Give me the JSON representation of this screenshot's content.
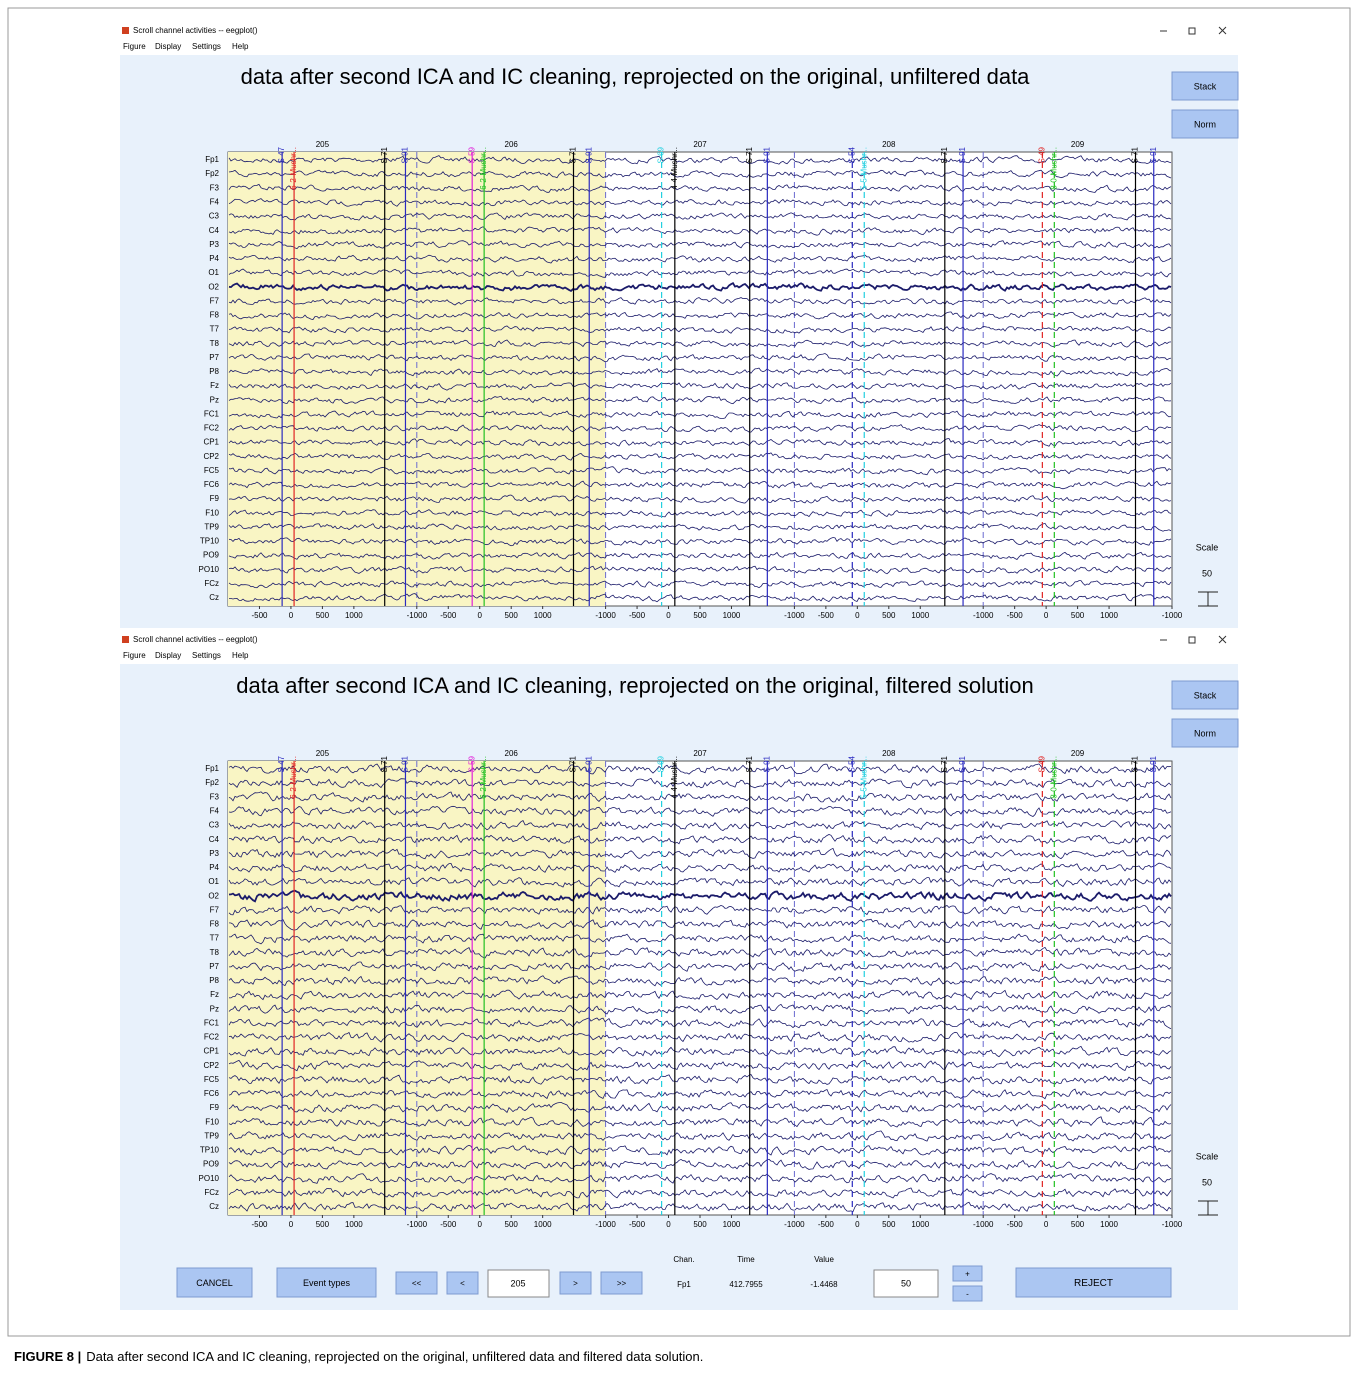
{
  "caption": {
    "label": "FIGURE 8 |",
    "text": "Data after second ICA and IC cleaning, reprojected on the original, unfiltered data and filtered data solution."
  },
  "eegplot": {
    "channels": [
      "Fp1",
      "Fp2",
      "F3",
      "F4",
      "C3",
      "C4",
      "P3",
      "P4",
      "O1",
      "O2",
      "F7",
      "F8",
      "T7",
      "T8",
      "P7",
      "P8",
      "Fz",
      "Pz",
      "FC1",
      "FC2",
      "CP1",
      "CP2",
      "FC5",
      "FC6",
      "F9",
      "F10",
      "TP9",
      "TP10",
      "PO9",
      "PO10",
      "FCz",
      "Cz"
    ],
    "xlim": [
      -1000,
      14000
    ],
    "xticks": [
      {
        "value": -500,
        "label": "-500"
      },
      0,
      500,
      1000,
      {
        "value": 2000,
        "label": "-1000"
      },
      {
        "value": 2500,
        "label": "-500"
      },
      {
        "value": 3000,
        "label": "0"
      },
      {
        "value": 3500,
        "label": "500"
      },
      {
        "value": 4000,
        "label": "1000"
      },
      {
        "value": 5000,
        "label": "-1000"
      },
      {
        "value": 5500,
        "label": "-500"
      },
      {
        "value": 6000,
        "label": "0"
      },
      {
        "value": 6500,
        "label": "500"
      },
      {
        "value": 7000,
        "label": "1000"
      },
      {
        "value": 8000,
        "label": "-1000"
      },
      {
        "value": 8500,
        "label": "-500"
      },
      {
        "value": 9000,
        "label": "0"
      },
      {
        "value": 9500,
        "label": "500"
      },
      {
        "value": 10000,
        "label": "1000"
      },
      {
        "value": 11000,
        "label": "-1000"
      },
      {
        "value": 11500,
        "label": "-500"
      },
      {
        "value": 12000,
        "label": "0"
      },
      {
        "value": 12500,
        "label": "500"
      },
      {
        "value": 13000,
        "label": "1000"
      },
      {
        "value": 14000,
        "label": "-1000"
      }
    ],
    "epochs": [
      {
        "value": 500,
        "label": "205"
      },
      {
        "value": 3500,
        "label": "206"
      },
      {
        "value": 6500,
        "label": "207"
      },
      {
        "value": 9500,
        "label": "208"
      },
      {
        "value": 12500,
        "label": "209"
      }
    ],
    "epoch_boundaries": [
      2000,
      5000,
      8000,
      11000
    ],
    "selection": [
      -1000,
      5000
    ],
    "selection_color": "#f9f5c4",
    "trace_color": "#1b1b6a",
    "events": [
      {
        "x": -140,
        "label": "S 47",
        "color": "#2a2ac0",
        "dashed": false
      },
      {
        "x": 50,
        "label": "6-2-Mushr...",
        "color": "#e02424",
        "dashed": false
      },
      {
        "x": 1490,
        "label": "S 71",
        "color": "#000000",
        "dashed": false
      },
      {
        "x": 1820,
        "label": "S 91",
        "color": "#2a2ac0",
        "dashed": false
      },
      {
        "x": 2880,
        "label": "S 59",
        "color": "#e020d8",
        "dashed": false
      },
      {
        "x": 3070,
        "label": "6-2-Mushr...",
        "color": "#22c022",
        "dashed": false
      },
      {
        "x": 4490,
        "label": "S 71",
        "color": "#000000",
        "dashed": false
      },
      {
        "x": 4740,
        "label": "S 91",
        "color": "#2a2ac0",
        "dashed": false
      },
      {
        "x": 5890,
        "label": "S 69",
        "color": "#22d0e0",
        "dashed": true
      },
      {
        "x": 6100,
        "label": "4-4-Mushr...",
        "color": "#000000",
        "dashed": false
      },
      {
        "x": 7290,
        "label": "S 71",
        "color": "#000000",
        "dashed": false
      },
      {
        "x": 7570,
        "label": "S 91",
        "color": "#2a2ac0",
        "dashed": false
      },
      {
        "x": 8920,
        "label": "S 54",
        "color": "#2a2ac0",
        "dashed": true
      },
      {
        "x": 9110,
        "label": "5-5-Mushr...",
        "color": "#22d0e0",
        "dashed": true
      },
      {
        "x": 10390,
        "label": "S 71",
        "color": "#000000",
        "dashed": false
      },
      {
        "x": 10680,
        "label": "S 91",
        "color": "#2a2ac0",
        "dashed": false
      },
      {
        "x": 11940,
        "label": "S 49",
        "color": "#e02424",
        "dashed": true
      },
      {
        "x": 12130,
        "label": "8-0-Mushr...",
        "color": "#22c022",
        "dashed": true
      },
      {
        "x": 13420,
        "label": "S 71",
        "color": "#000000",
        "dashed": false
      },
      {
        "x": 13710,
        "label": "S 91",
        "color": "#2a2ac0",
        "dashed": false
      }
    ]
  },
  "windows": [
    {
      "title": "Scroll channel activities -- eegplot()",
      "menu": [
        "Figure",
        "Display",
        "Settings",
        "Help"
      ],
      "plot_title": "data after second ICA and IC cleaning, reprojected on the original, unfiltered data",
      "buttons": [
        "Stack",
        "Norm"
      ],
      "scale_label": "Scale",
      "scale_value": "50"
    },
    {
      "title": "Scroll channel activities -- eegplot()",
      "menu": [
        "Figure",
        "Display",
        "Settings",
        "Help"
      ],
      "plot_title": "data after second ICA and IC cleaning, reprojected on the original, filtered solution",
      "buttons": [
        "Stack",
        "Norm"
      ],
      "scale_label": "Scale",
      "scale_value": "50"
    }
  ],
  "controls": {
    "cancel": "CANCEL",
    "event_types": "Event types",
    "nav_back": [
      "<<",
      "<"
    ],
    "epoch_input": "205",
    "nav_forward": [
      ">",
      ">>"
    ],
    "readout_headers": [
      "Chan.",
      "Time",
      "Value"
    ],
    "readout_values": [
      "Fp1",
      "412.7955",
      "-1.4468"
    ],
    "scale_input": "50",
    "plus": "+",
    "minus": "-",
    "reject": "REJECT"
  }
}
